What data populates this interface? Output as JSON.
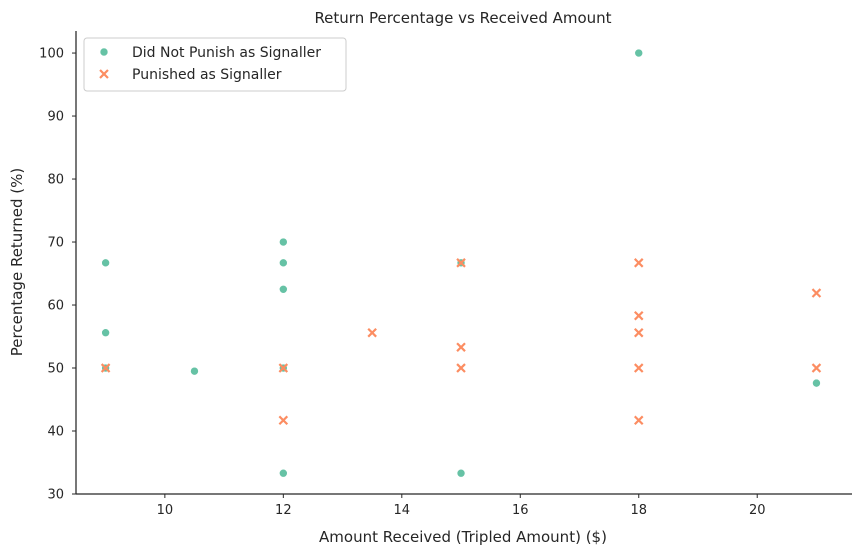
{
  "chart_data": {
    "type": "scatter",
    "title": "Return Percentage vs Received Amount",
    "xlabel": "Amount Received (Tripled Amount) ($)",
    "ylabel": "Percentage Returned (%)",
    "xlim": [
      8.5,
      21.6
    ],
    "ylim": [
      30,
      103.5
    ],
    "xticks": [
      10,
      12,
      14,
      16,
      18,
      20
    ],
    "yticks": [
      30,
      40,
      50,
      60,
      70,
      80,
      90,
      100
    ],
    "grid": false,
    "legend_position": "top-left",
    "series": [
      {
        "name": "Did Not Punish as Signaller",
        "marker": "circle",
        "color": "#66c2a5",
        "x": [
          9,
          9,
          9,
          10.5,
          12,
          12,
          12,
          12,
          12,
          15,
          15,
          18,
          21
        ],
        "y": [
          66.7,
          55.6,
          50,
          49.5,
          70,
          66.7,
          62.5,
          50,
          33.3,
          66.7,
          33.3,
          100,
          47.6
        ]
      },
      {
        "name": "Punished as Signaller",
        "marker": "x",
        "color": "#fc8d62",
        "x": [
          9,
          12,
          12,
          13.5,
          15,
          15,
          15,
          18,
          18,
          18,
          18,
          18,
          21,
          21
        ],
        "y": [
          50,
          50,
          41.7,
          55.6,
          66.7,
          53.3,
          50,
          66.7,
          58.3,
          55.6,
          50,
          41.7,
          61.9,
          50
        ]
      }
    ]
  }
}
